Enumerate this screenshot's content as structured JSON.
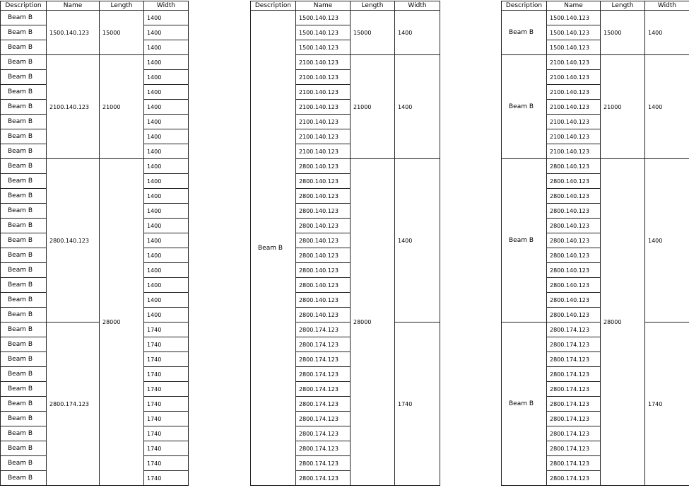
{
  "tables": [
    {
      "columns": [
        {
          "header": "Description",
          "cells": [
            "Beam B",
            "Beam B",
            "Beam B",
            "Beam B",
            "Beam B",
            "Beam B",
            "Beam B",
            "Beam B",
            "Beam B",
            "Beam B",
            "Beam B",
            "Beam B",
            "Beam B",
            "Beam B",
            "Beam B",
            "Beam B",
            "Beam B",
            "Beam B",
            "Beam B",
            "Beam B",
            "Beam B",
            "Beam B",
            "Beam B",
            "Beam B",
            "Beam B",
            "Beam B",
            "Beam B",
            "Beam B",
            "Beam B",
            "Beam B",
            "Beam B",
            "Beam B"
          ]
        },
        {
          "header": "Name",
          "cells": [
            "1500.140.123",
            "2100.140.123",
            "2800.140.123",
            "2800.174.123"
          ]
        },
        {
          "header": "Length",
          "cells": [
            "15000",
            "21000",
            "28000"
          ]
        },
        {
          "header": "Width",
          "cells": [
            "1400",
            "1400",
            "1400",
            "1400",
            "1400",
            "1400",
            "1400",
            "1400",
            "1400",
            "1400",
            "1400",
            "1400",
            "1400",
            "1400",
            "1400",
            "1400",
            "1400",
            "1400",
            "1400",
            "1400",
            "1400",
            "1740",
            "1740",
            "1740",
            "1740",
            "1740",
            "1740",
            "1740",
            "1740",
            "1740",
            "1740",
            "1740"
          ]
        }
      ]
    },
    {
      "columns": [
        {
          "header": "Description",
          "cells": [
            "Beam B"
          ]
        },
        {
          "header": "Name",
          "cells": [
            "1500.140.123",
            "1500.140.123",
            "1500.140.123",
            "2100.140.123",
            "2100.140.123",
            "2100.140.123",
            "2100.140.123",
            "2100.140.123",
            "2100.140.123",
            "2100.140.123",
            "2800.140.123",
            "2800.140.123",
            "2800.140.123",
            "2800.140.123",
            "2800.140.123",
            "2800.140.123",
            "2800.140.123",
            "2800.140.123",
            "2800.140.123",
            "2800.140.123",
            "2800.140.123",
            "2800.174.123",
            "2800.174.123",
            "2800.174.123",
            "2800.174.123",
            "2800.174.123",
            "2800.174.123",
            "2800.174.123",
            "2800.174.123",
            "2800.174.123",
            "2800.174.123",
            "2800.174.123"
          ]
        },
        {
          "header": "Length",
          "cells": [
            "15000",
            "21000",
            "28000"
          ]
        },
        {
          "header": "Width",
          "cells": [
            "1400",
            "1400",
            "1400",
            "1740"
          ]
        }
      ]
    },
    {
      "columns": [
        {
          "header": "Description",
          "cells": [
            "Beam B",
            "Beam B",
            "Beam B",
            "Beam B"
          ]
        },
        {
          "header": "Name",
          "cells": [
            "1500.140.123",
            "1500.140.123",
            "1500.140.123",
            "2100.140.123",
            "2100.140.123",
            "2100.140.123",
            "2100.140.123",
            "2100.140.123",
            "2100.140.123",
            "2100.140.123",
            "2800.140.123",
            "2800.140.123",
            "2800.140.123",
            "2800.140.123",
            "2800.140.123",
            "2800.140.123",
            "2800.140.123",
            "2800.140.123",
            "2800.140.123",
            "2800.140.123",
            "2800.140.123",
            "2800.174.123",
            "2800.174.123",
            "2800.174.123",
            "2800.174.123",
            "2800.174.123",
            "2800.174.123",
            "2800.174.123",
            "2800.174.123",
            "2800.174.123",
            "2800.174.123",
            "2800.174.123"
          ]
        },
        {
          "header": "Length",
          "cells": [
            "15000",
            "21000",
            "28000"
          ]
        },
        {
          "header": "Width",
          "cells": [
            "1400",
            "1400",
            "1400",
            "1740"
          ]
        }
      ]
    }
  ]
}
